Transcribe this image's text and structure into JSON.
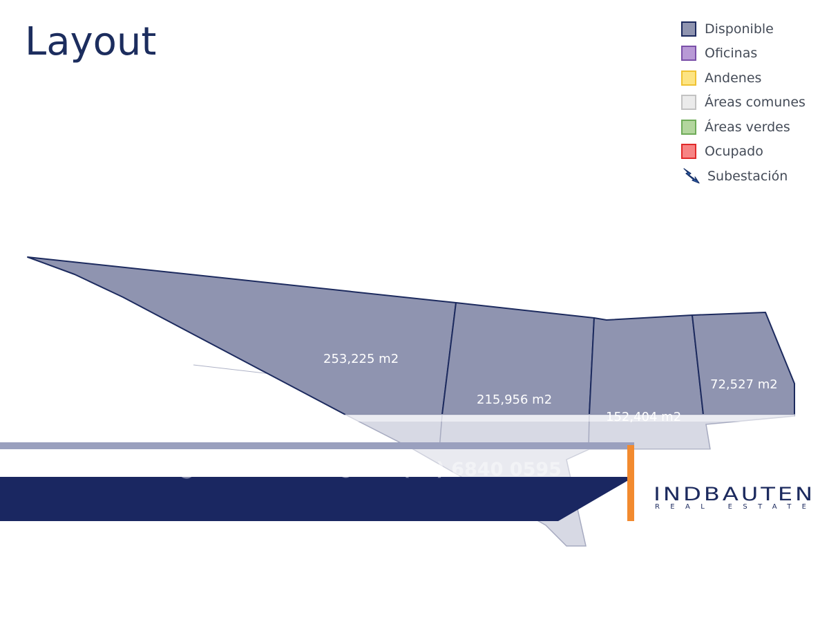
{
  "title": "Layout",
  "legend": [
    {
      "label": "Disponible",
      "fill": "#8f94b0",
      "border": "#1c2a5e"
    },
    {
      "label": "Oficinas",
      "fill": "#b899d6",
      "border": "#7a4fa8"
    },
    {
      "label": "Andenes",
      "fill": "#fde483",
      "border": "#efc232"
    },
    {
      "label": "Áreas comunes",
      "fill": "#ebebeb",
      "border": "#c2c2c2"
    },
    {
      "label": "Áreas verdes",
      "fill": "#b3d69e",
      "border": "#6eab58"
    },
    {
      "label": "Ocupado",
      "fill": "#f78484",
      "border": "#e12a2a"
    },
    {
      "label": "Subestación",
      "icon": "lightning-bolt-icon"
    }
  ],
  "lots": [
    {
      "label": "253,225 m2"
    },
    {
      "label": "215,956 m2"
    },
    {
      "label": "152,404 m2"
    },
    {
      "label": "72,527 m2"
    }
  ],
  "footer": {
    "email": "contacto@indbauten.com",
    "phone": "+52 (55) 6840 0595",
    "email_icon": "envelope-icon",
    "phone_icon": "phone-icon"
  },
  "logo": {
    "name": "INDBAUTEN",
    "subtitle": "REAL ESTATE"
  },
  "colors": {
    "navy": "#1a2761",
    "accent_orange": "#f28a2f",
    "available": "#8f94b0"
  }
}
